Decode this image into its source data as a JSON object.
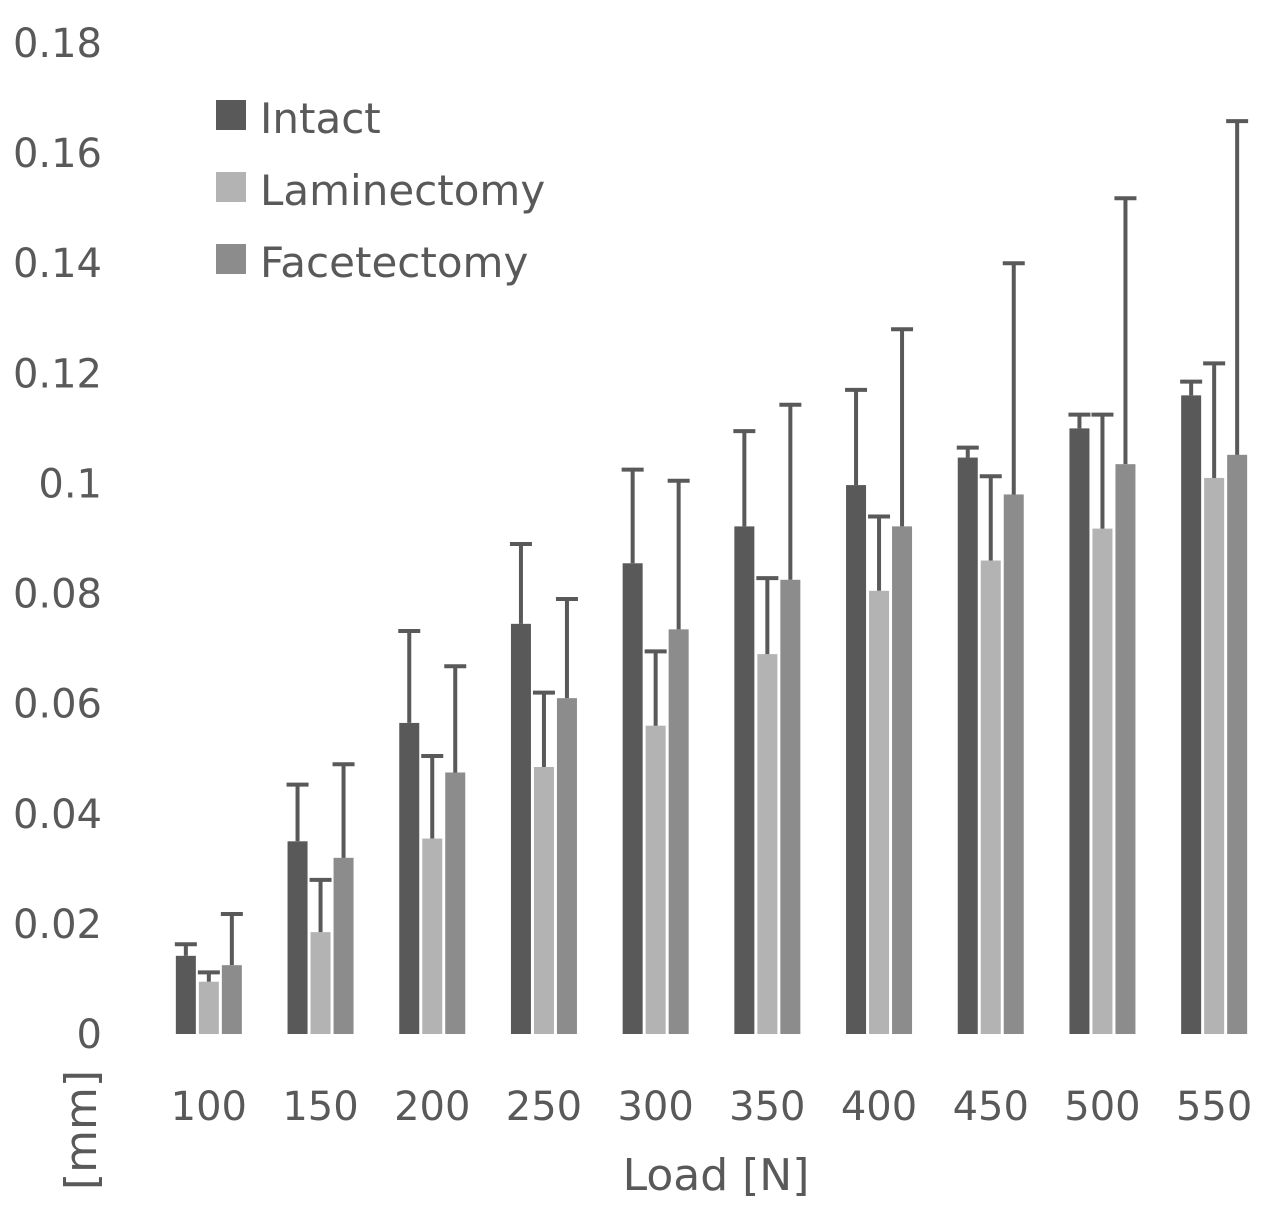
{
  "chart_data": {
    "type": "bar",
    "title": "",
    "xlabel": "Load [N]",
    "ylabel": "[mm]",
    "ylim": [
      0,
      0.18
    ],
    "yticks": [
      "0",
      "0.02",
      "0.04",
      "0.06",
      "0.08",
      "0.1",
      "0.12",
      "0.14",
      "0.16",
      "0.18"
    ],
    "grid": false,
    "legend_position": "top-left",
    "categories": [
      "100",
      "150",
      "200",
      "250",
      "300",
      "350",
      "400",
      "450",
      "500",
      "550"
    ],
    "series": [
      {
        "name": "Intact",
        "color": "#595959",
        "values": [
          0.0142,
          0.035,
          0.0565,
          0.0745,
          0.0855,
          0.0922,
          0.0997,
          0.1047,
          0.11,
          0.116
        ],
        "error_upper": [
          0.0163,
          0.0453,
          0.0732,
          0.089,
          0.1025,
          0.1095,
          0.117,
          0.1065,
          0.1125,
          0.1185
        ]
      },
      {
        "name": "Laminectomy",
        "color": "#b3b3b3",
        "values": [
          0.0095,
          0.0185,
          0.0355,
          0.0485,
          0.056,
          0.069,
          0.0805,
          0.086,
          0.0918,
          0.101
        ],
        "error_upper": [
          0.0112,
          0.028,
          0.0505,
          0.062,
          0.0695,
          0.0828,
          0.094,
          0.1013,
          0.1125,
          0.1218
        ]
      },
      {
        "name": "Facetectomy",
        "color": "#8c8c8c",
        "values": [
          0.0125,
          0.032,
          0.0475,
          0.061,
          0.0735,
          0.0825,
          0.0922,
          0.098,
          0.1035,
          0.1052
        ],
        "error_upper": [
          0.0218,
          0.049,
          0.0668,
          0.079,
          0.1005,
          0.1143,
          0.128,
          0.14,
          0.1518,
          0.1658
        ]
      }
    ]
  }
}
